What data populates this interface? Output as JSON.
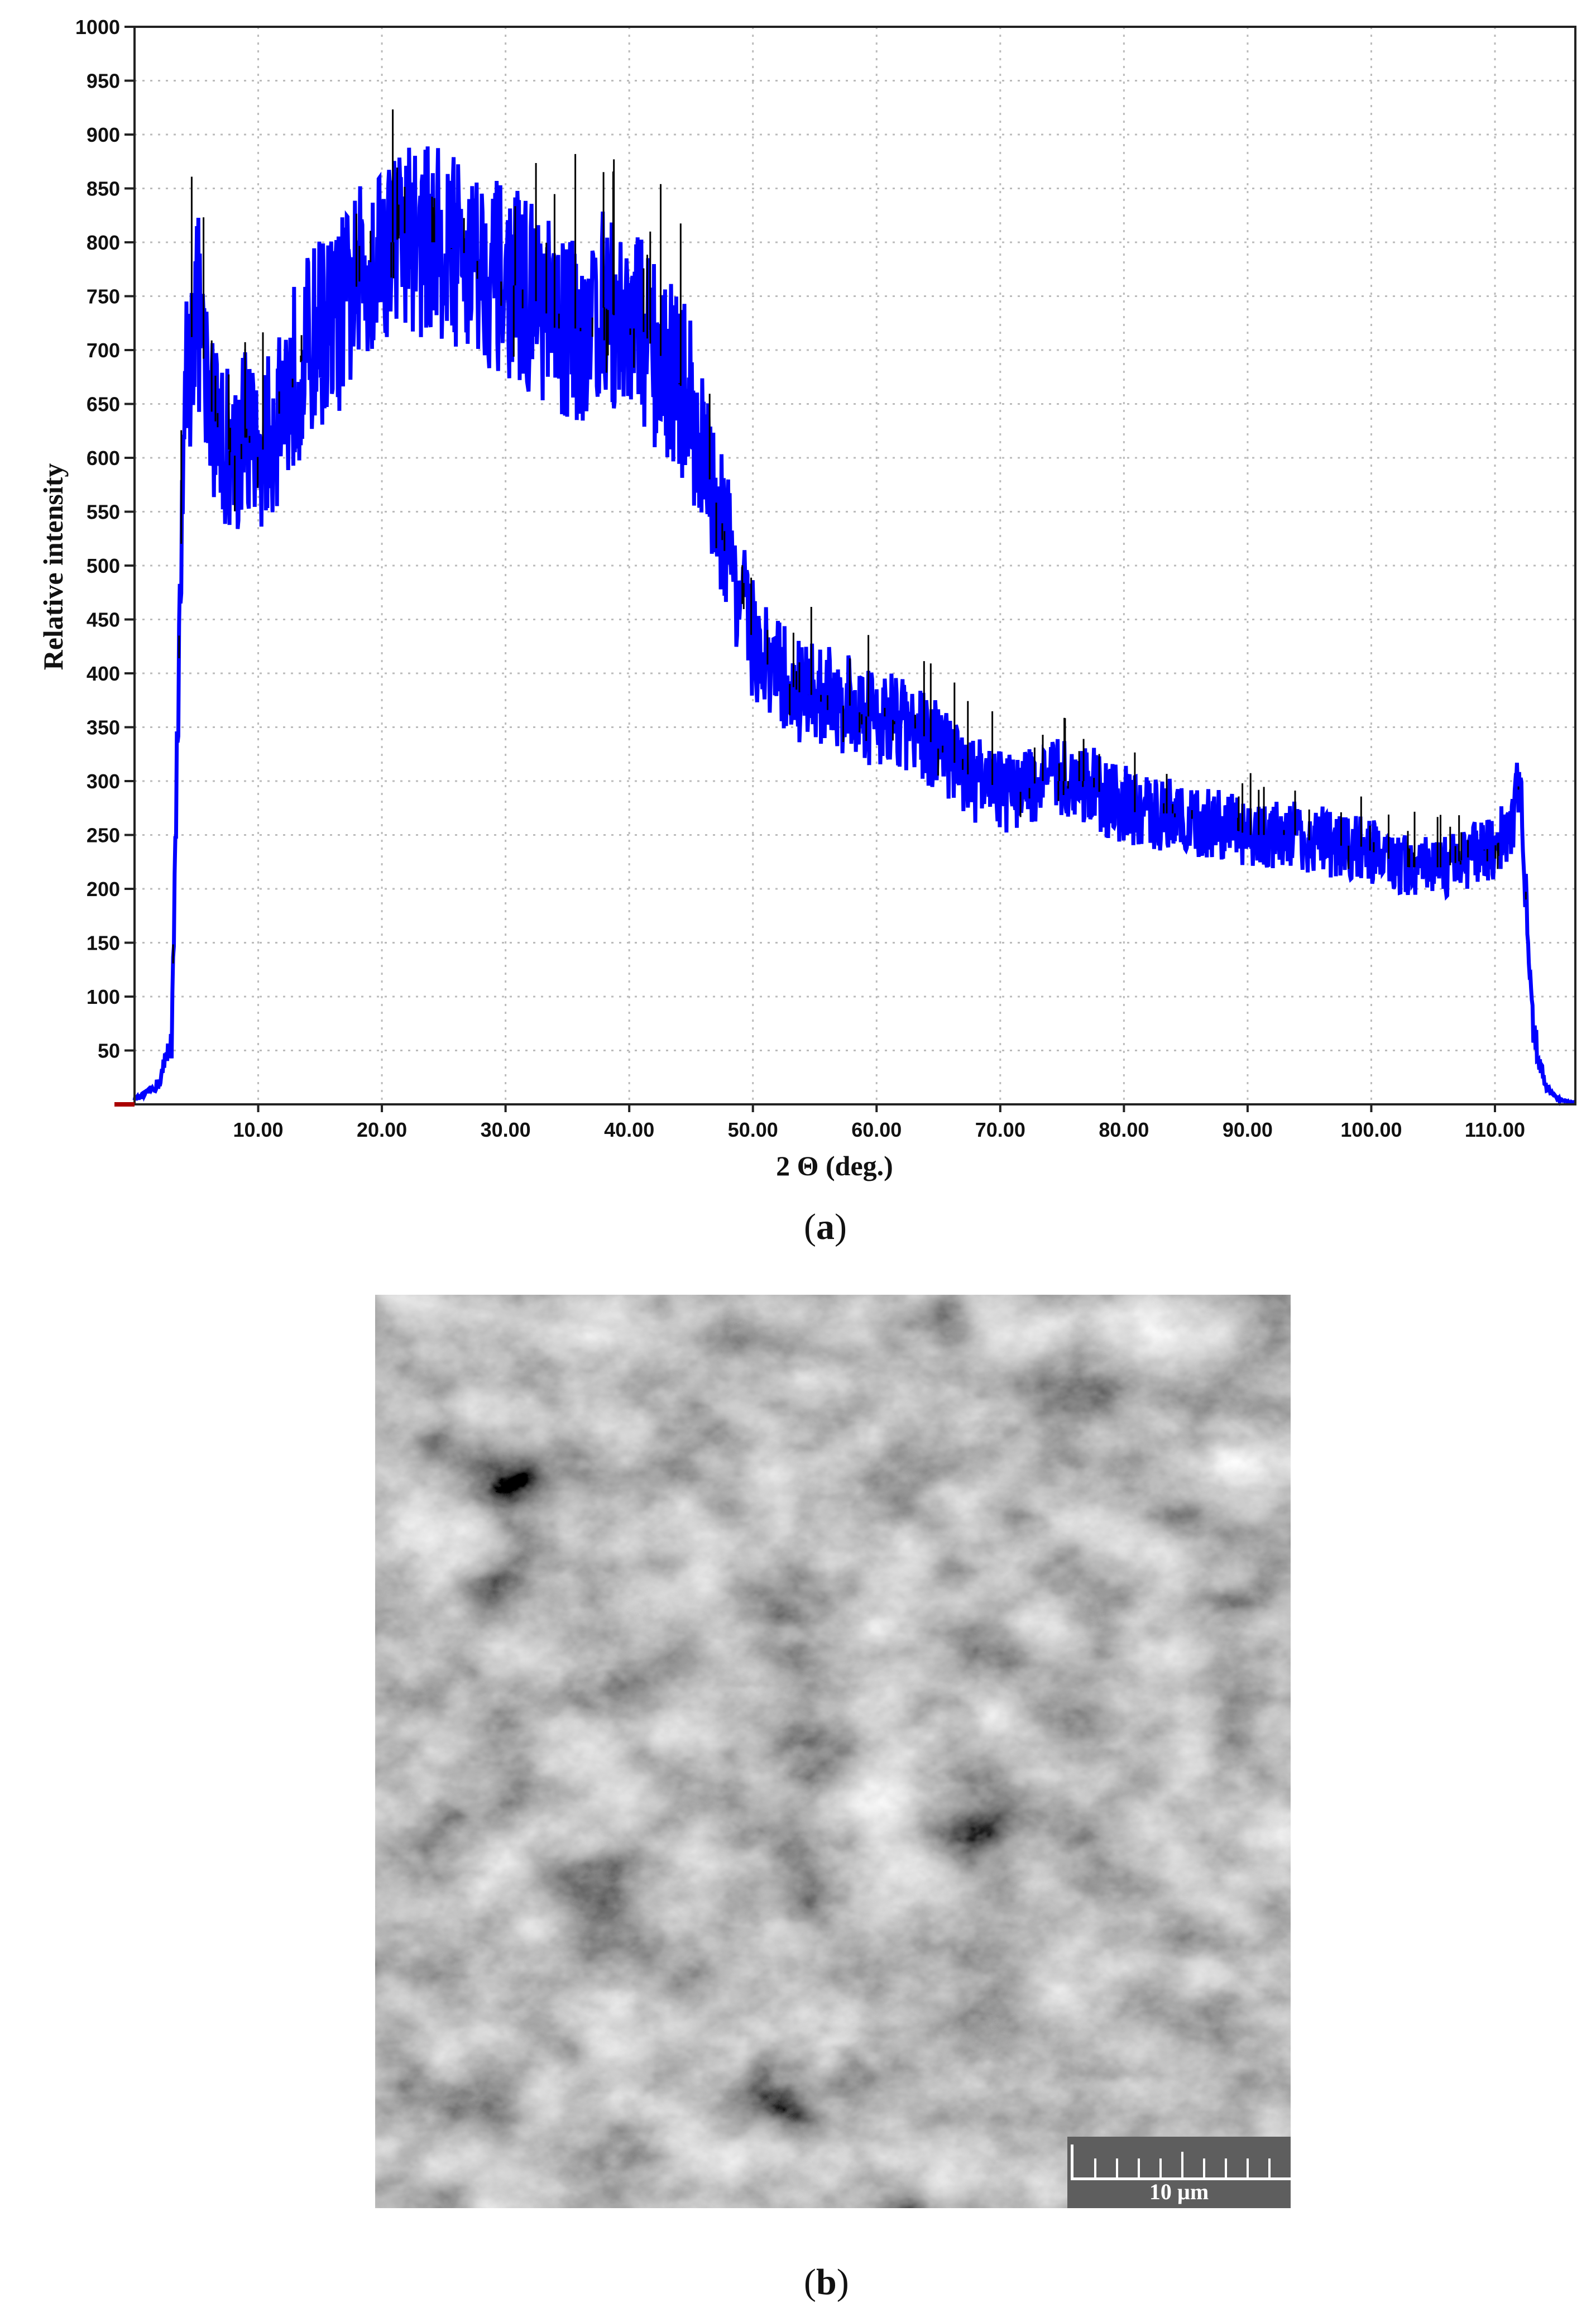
{
  "chart_data": {
    "type": "line",
    "title": "",
    "xlabel": "2 Θ (deg.)",
    "ylabel": "Relative intensity",
    "xlim": [
      0,
      116.5
    ],
    "ylim": [
      0,
      1000
    ],
    "grid": true,
    "legend": "none",
    "series_color": "#0000ff",
    "spike_color": "#000000",
    "x_ticks": [
      "10.00",
      "20.00",
      "30.00",
      "40.00",
      "50.00",
      "60.00",
      "70.00",
      "80.00",
      "90.00",
      "100.00",
      "110.00"
    ],
    "y_ticks": [
      "50",
      "100",
      "150",
      "200",
      "250",
      "300",
      "350",
      "400",
      "450",
      "500",
      "550",
      "600",
      "650",
      "700",
      "750",
      "800",
      "850",
      "900",
      "950",
      "1000"
    ],
    "x": [
      0,
      1,
      2,
      3,
      4,
      5,
      6,
      7,
      8,
      9,
      10,
      11,
      12,
      13,
      14,
      15,
      16,
      17,
      18,
      19,
      20,
      21,
      22,
      23,
      24,
      25,
      26,
      27,
      28,
      29,
      30,
      31,
      32,
      33,
      34,
      35,
      36,
      37,
      38,
      39,
      40,
      41,
      42,
      43,
      44,
      45,
      46,
      47,
      48,
      49,
      50,
      51,
      52,
      53,
      54,
      55,
      56,
      57,
      58,
      59,
      60,
      61,
      62,
      63,
      64,
      65,
      66,
      67,
      68,
      69,
      70,
      71,
      72,
      73,
      74,
      75,
      76,
      77,
      78,
      79,
      80,
      81,
      82,
      83,
      84,
      85,
      86,
      87,
      88,
      89,
      90,
      91,
      92,
      93,
      94,
      95,
      96,
      97,
      98,
      99,
      100,
      101,
      102,
      103,
      104,
      105,
      106,
      107,
      108,
      109,
      110,
      111,
      112,
      113,
      114,
      115,
      116
    ],
    "y": [
      5,
      10,
      20,
      60,
      650,
      750,
      650,
      620,
      600,
      620,
      600,
      620,
      650,
      680,
      700,
      720,
      720,
      740,
      760,
      780,
      800,
      800,
      810,
      800,
      800,
      800,
      790,
      790,
      780,
      770,
      760,
      760,
      750,
      740,
      720,
      720,
      720,
      730,
      740,
      730,
      720,
      720,
      700,
      690,
      670,
      650,
      600,
      560,
      520,
      470,
      430,
      410,
      400,
      390,
      380,
      380,
      380,
      370,
      370,
      360,
      360,
      360,
      350,
      350,
      340,
      330,
      320,
      310,
      300,
      300,
      290,
      290,
      290,
      300,
      300,
      300,
      300,
      300,
      290,
      280,
      280,
      270,
      270,
      270,
      270,
      270,
      260,
      260,
      260,
      255,
      250,
      250,
      250,
      250,
      250,
      245,
      245,
      240,
      240,
      240,
      235,
      230,
      225,
      220,
      220,
      220,
      220,
      225,
      230,
      235,
      240,
      250,
      300,
      80,
      20,
      5,
      2
    ]
  },
  "captions": {
    "a": "a",
    "b": "b"
  },
  "sem": {
    "scale_label": "10 µm"
  }
}
